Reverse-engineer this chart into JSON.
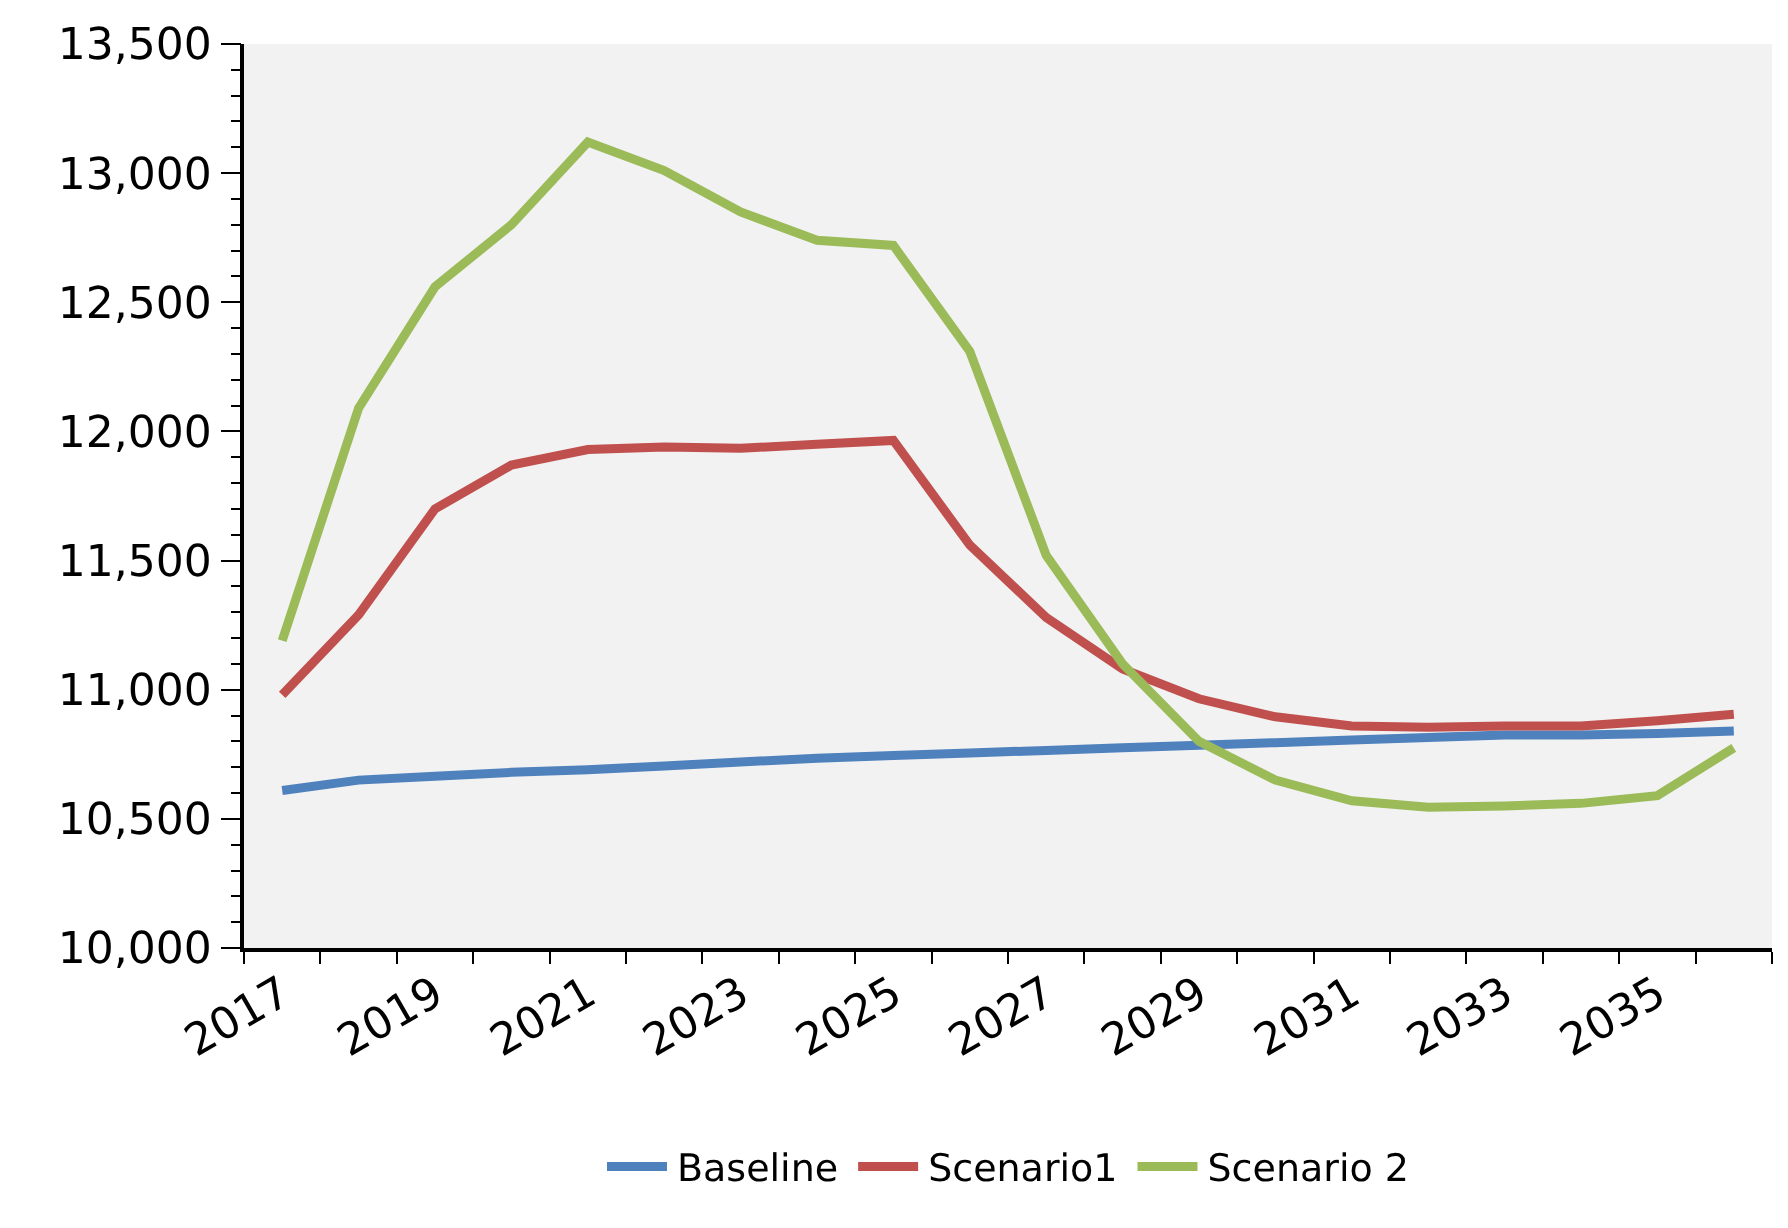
{
  "chart_data": {
    "type": "line",
    "categories": [
      "2017",
      null,
      "2019",
      null,
      "2021",
      null,
      "2023",
      null,
      "2025",
      null,
      "2027",
      null,
      "2029",
      null,
      "2031",
      null,
      "2033",
      null,
      "2035",
      null
    ],
    "series": [
      {
        "name": "Baseline",
        "color": "#4f81bd",
        "values": [
          10610,
          10650,
          10665,
          10680,
          10690,
          10705,
          10720,
          10735,
          10745,
          10755,
          10765,
          10775,
          10785,
          10795,
          10805,
          10815,
          10825,
          10825,
          10830,
          10840
        ]
      },
      {
        "name": "Scenario1",
        "color": "#c0504d",
        "values": [
          10980,
          11290,
          11700,
          11870,
          11930,
          11940,
          11935,
          11950,
          11965,
          11560,
          11280,
          11080,
          10965,
          10895,
          10860,
          10855,
          10860,
          10860,
          10880,
          10905
        ]
      },
      {
        "name": "Scenario 2",
        "color": "#9bbb59",
        "values": [
          11190,
          12090,
          12560,
          12800,
          13120,
          13010,
          12850,
          12740,
          12720,
          12310,
          11520,
          11100,
          10800,
          10650,
          10570,
          10545,
          10550,
          10560,
          10590,
          10775
        ]
      }
    ],
    "ylim": [
      10000,
      13500
    ],
    "yticks": [
      {
        "value": 10000,
        "label": "10,000"
      },
      {
        "value": 10500,
        "label": "10,500"
      },
      {
        "value": 11000,
        "label": "11,000"
      },
      {
        "value": 11500,
        "label": "11,500"
      },
      {
        "value": 12000,
        "label": "12,000"
      },
      {
        "value": 12500,
        "label": "12,500"
      },
      {
        "value": 13000,
        "label": "13,000"
      },
      {
        "value": 13500,
        "label": "13,500"
      }
    ],
    "grid": false,
    "legend": "bottom",
    "marker": "none",
    "line_style": "solid"
  }
}
